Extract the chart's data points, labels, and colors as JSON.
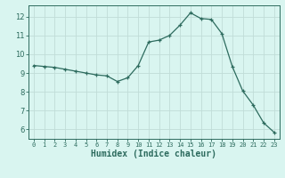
{
  "x": [
    0,
    1,
    2,
    3,
    4,
    5,
    6,
    7,
    8,
    9,
    10,
    11,
    12,
    13,
    14,
    15,
    16,
    17,
    18,
    19,
    20,
    21,
    22,
    23
  ],
  "y": [
    9.4,
    9.35,
    9.3,
    9.2,
    9.1,
    9.0,
    8.9,
    8.85,
    8.55,
    8.75,
    9.4,
    10.65,
    10.75,
    11.0,
    11.55,
    12.2,
    11.9,
    11.85,
    11.1,
    9.35,
    8.05,
    7.3,
    6.35,
    5.85
  ],
  "line_color": "#2d6b5e",
  "marker": "+",
  "bg_color": "#d9f5f0",
  "grid_color": "#c0ddd8",
  "tick_color": "#2d6b5e",
  "xlabel": "Humidex (Indice chaleur)",
  "xlabel_fontsize": 7,
  "ylabel_ticks": [
    6,
    7,
    8,
    9,
    10,
    11,
    12
  ],
  "ylim": [
    5.5,
    12.6
  ],
  "xlim": [
    -0.5,
    23.5
  ]
}
